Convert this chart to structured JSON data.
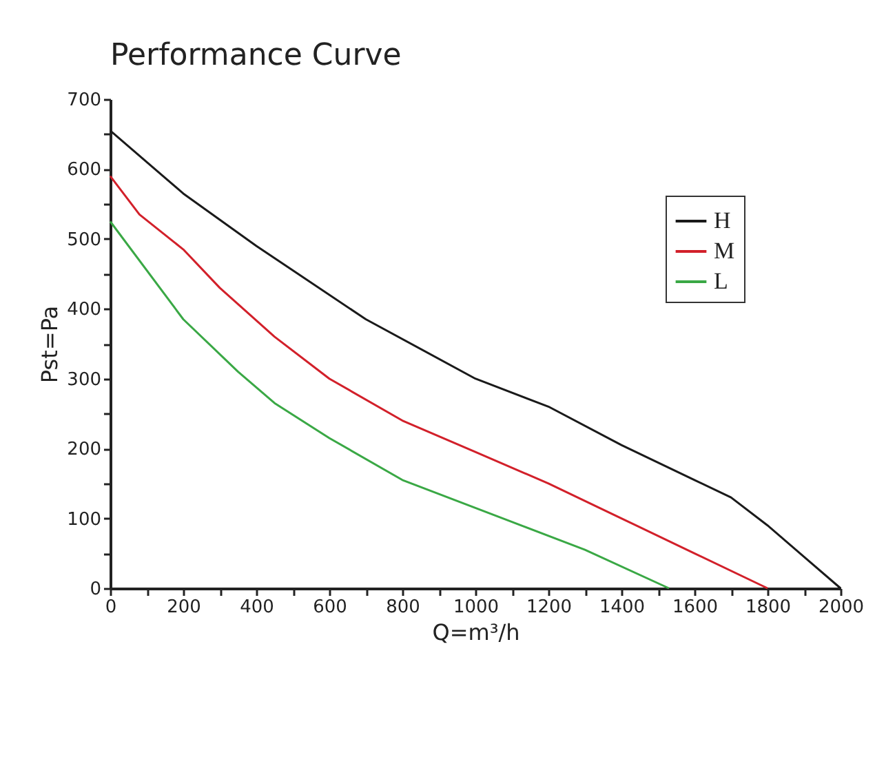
{
  "chart_data": {
    "type": "line",
    "title": "Performance Curve",
    "xlabel": "Q=m³/h",
    "ylabel": "Pst=Pa",
    "xlim": [
      0,
      2000
    ],
    "ylim": [
      0,
      700
    ],
    "xticks": [
      0,
      {
        "value": 100,
        "label": null
      },
      200,
      {
        "value": 300,
        "label": null
      },
      400,
      {
        "value": 500,
        "label": null
      },
      600,
      {
        "value": 700,
        "label": null
      },
      800,
      {
        "value": 900,
        "label": null
      },
      1000,
      {
        "value": 1100,
        "label": null
      },
      1200,
      {
        "value": 1300,
        "label": null
      },
      1400,
      {
        "value": 1500,
        "label": null
      },
      1600,
      {
        "value": 1700,
        "label": null
      },
      1800,
      {
        "value": 1900,
        "label": null
      },
      2000
    ],
    "yticks": [
      0,
      {
        "value": 50,
        "label": null
      },
      100,
      {
        "value": 150,
        "label": null
      },
      200,
      {
        "value": 250,
        "label": null
      },
      300,
      {
        "value": 350,
        "label": null
      },
      400,
      {
        "value": 450,
        "label": null
      },
      500,
      {
        "value": 550,
        "label": null
      },
      600,
      {
        "value": 650,
        "label": null
      },
      700
    ],
    "grid": false,
    "legend": "top right",
    "marker": "none",
    "line_style": "solid",
    "series": [
      {
        "name": "H",
        "color": "#1a1a1a",
        "x": [
          0,
          200,
          400,
          500,
          700,
          1000,
          1200,
          1400,
          1600,
          1700,
          1800,
          1900,
          2000
        ],
        "values": [
          655,
          565,
          490,
          455,
          385,
          300,
          260,
          205,
          155,
          130,
          90,
          45,
          0
        ]
      },
      {
        "name": "M",
        "color": "#d2202a",
        "x": [
          0,
          80,
          200,
          300,
          450,
          600,
          800,
          1000,
          1200,
          1400,
          1600,
          1800
        ],
        "values": [
          590,
          535,
          485,
          430,
          360,
          300,
          240,
          195,
          150,
          100,
          50,
          0
        ]
      },
      {
        "name": "L",
        "color": "#3aa845",
        "x": [
          0,
          200,
          350,
          450,
          600,
          800,
          1100,
          1300,
          1530
        ],
        "values": [
          525,
          385,
          310,
          265,
          215,
          155,
          95,
          55,
          0
        ]
      }
    ]
  }
}
